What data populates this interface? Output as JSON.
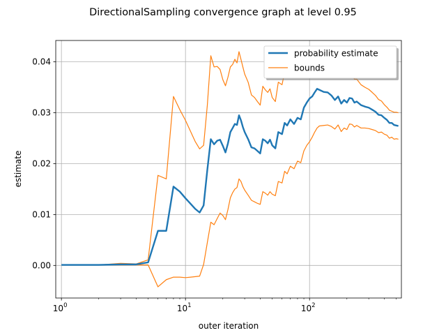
{
  "chart_data": {
    "type": "line",
    "title": "DirectionalSampling convergence graph at level 0.95",
    "xlabel": "outer iteration",
    "ylabel": "estimate",
    "xscale": "log",
    "xlim": [
      0.9,
      550
    ],
    "ylim": [
      -0.0064,
      0.0442
    ],
    "x_ticks": [
      {
        "value": 1,
        "base": "10",
        "exp": "0"
      },
      {
        "value": 10,
        "base": "10",
        "exp": "1"
      },
      {
        "value": 100,
        "base": "10",
        "exp": "2"
      }
    ],
    "y_ticks": [
      {
        "value": 0.0,
        "label": "0.00"
      },
      {
        "value": 0.01,
        "label": "0.01"
      },
      {
        "value": 0.02,
        "label": "0.02"
      },
      {
        "value": 0.03,
        "label": "0.03"
      },
      {
        "value": 0.04,
        "label": "0.04"
      }
    ],
    "grid": true,
    "legend_position": "top-right",
    "series": [
      {
        "name": "probability estimate",
        "color": "#1f77b4",
        "x": [
          1,
          2,
          3,
          4,
          5,
          6,
          7,
          8,
          9,
          10,
          11,
          12,
          13,
          14,
          15,
          16,
          17,
          18,
          19,
          20,
          21,
          22,
          23,
          24,
          25,
          26,
          27,
          28,
          29,
          30,
          32,
          34,
          36,
          38,
          40,
          42,
          44,
          46,
          48,
          50,
          53,
          56,
          60,
          63,
          66,
          70,
          75,
          80,
          85,
          90,
          95,
          100,
          105,
          110,
          115,
          120,
          130,
          140,
          150,
          160,
          170,
          180,
          190,
          200,
          210,
          220,
          230,
          240,
          260,
          280,
          300,
          320,
          340,
          360,
          380,
          400,
          420,
          440,
          460,
          480,
          500,
          520
        ],
        "values": [
          0.0001,
          0.0001,
          0.0002,
          0.0002,
          0.0006,
          0.0068,
          0.0068,
          0.0155,
          0.0145,
          0.0132,
          0.0121,
          0.0111,
          0.0104,
          0.0118,
          0.0188,
          0.0248,
          0.0238,
          0.0245,
          0.0247,
          0.0235,
          0.0222,
          0.024,
          0.0262,
          0.027,
          0.0278,
          0.0276,
          0.0295,
          0.0285,
          0.0272,
          0.0262,
          0.0248,
          0.0232,
          0.023,
          0.0225,
          0.022,
          0.0248,
          0.0245,
          0.024,
          0.0247,
          0.0236,
          0.023,
          0.0262,
          0.0258,
          0.028,
          0.0275,
          0.0287,
          0.0278,
          0.029,
          0.0287,
          0.031,
          0.032,
          0.0328,
          0.0332,
          0.034,
          0.0347,
          0.0345,
          0.0341,
          0.034,
          0.0334,
          0.0325,
          0.0332,
          0.0318,
          0.0325,
          0.032,
          0.0329,
          0.0328,
          0.032,
          0.0322,
          0.0315,
          0.0312,
          0.031,
          0.0306,
          0.0302,
          0.0296,
          0.0295,
          0.029,
          0.0286,
          0.028,
          0.028,
          0.0276,
          0.0275,
          0.0274
        ]
      },
      {
        "name": "bounds",
        "color": "#ff7f0e",
        "x": [
          2,
          3,
          4,
          5,
          6,
          7,
          8,
          9,
          10,
          11,
          12,
          13,
          14,
          15,
          16,
          17,
          18,
          19,
          20,
          21,
          22,
          23,
          24,
          25,
          26,
          27,
          28,
          29,
          30,
          32,
          34,
          36,
          38,
          40,
          42,
          44,
          46,
          48,
          50,
          53,
          56,
          60,
          63,
          66,
          70,
          75,
          80,
          85,
          90,
          95,
          100,
          105,
          110,
          115,
          120,
          130,
          140,
          150,
          160,
          170,
          180,
          190,
          200,
          210,
          220,
          230,
          240,
          260,
          280,
          300,
          320,
          340,
          360,
          380,
          400,
          420,
          440,
          460,
          480,
          500,
          520
        ],
        "upper": [
          0.0001,
          0.0004,
          0.0003,
          0.0011,
          0.0177,
          0.017,
          0.0332,
          0.0306,
          0.0285,
          0.0263,
          0.0243,
          0.0229,
          0.0236,
          0.0315,
          0.0412,
          0.039,
          0.0391,
          0.0385,
          0.0365,
          0.0353,
          0.037,
          0.039,
          0.0395,
          0.0405,
          0.0398,
          0.042,
          0.0405,
          0.039,
          0.0376,
          0.036,
          0.0335,
          0.033,
          0.0322,
          0.0315,
          0.0352,
          0.0345,
          0.034,
          0.0347,
          0.033,
          0.0322,
          0.036,
          0.0355,
          0.038,
          0.0373,
          0.0388,
          0.0375,
          0.039,
          0.0385,
          0.0405,
          0.0412,
          0.0418,
          0.0415,
          0.042,
          0.0425,
          0.042,
          0.041,
          0.0405,
          0.0395,
          0.0383,
          0.0388,
          0.0372,
          0.038,
          0.0372,
          0.0379,
          0.0376,
          0.0366,
          0.0366,
          0.0355,
          0.035,
          0.0346,
          0.034,
          0.0334,
          0.0326,
          0.0323,
          0.0316,
          0.0311,
          0.0305,
          0.0303,
          0.0301,
          0.0301,
          0.03
        ],
        "lower": [
          0.0001,
          0.0001,
          0.0001,
          0.0001,
          -0.0042,
          -0.0028,
          -0.0023,
          -0.0023,
          -0.0024,
          -0.0023,
          -0.0022,
          -0.0021,
          0.0002,
          0.0045,
          0.0085,
          0.008,
          0.0092,
          0.0103,
          0.0098,
          0.009,
          0.011,
          0.0133,
          0.0143,
          0.015,
          0.0153,
          0.017,
          0.0165,
          0.0155,
          0.0148,
          0.0138,
          0.0128,
          0.0125,
          0.0122,
          0.012,
          0.0145,
          0.0142,
          0.0138,
          0.0145,
          0.014,
          0.0137,
          0.0165,
          0.0162,
          0.0185,
          0.018,
          0.0195,
          0.019,
          0.0205,
          0.0202,
          0.0225,
          0.0236,
          0.0243,
          0.0252,
          0.0262,
          0.027,
          0.0274,
          0.0275,
          0.0276,
          0.0273,
          0.0268,
          0.0276,
          0.0263,
          0.027,
          0.0267,
          0.0278,
          0.0277,
          0.0272,
          0.0275,
          0.027,
          0.027,
          0.0269,
          0.0267,
          0.0265,
          0.0261,
          0.0262,
          0.0258,
          0.0256,
          0.025,
          0.0252,
          0.0248,
          0.0249,
          0.0248
        ]
      }
    ]
  }
}
